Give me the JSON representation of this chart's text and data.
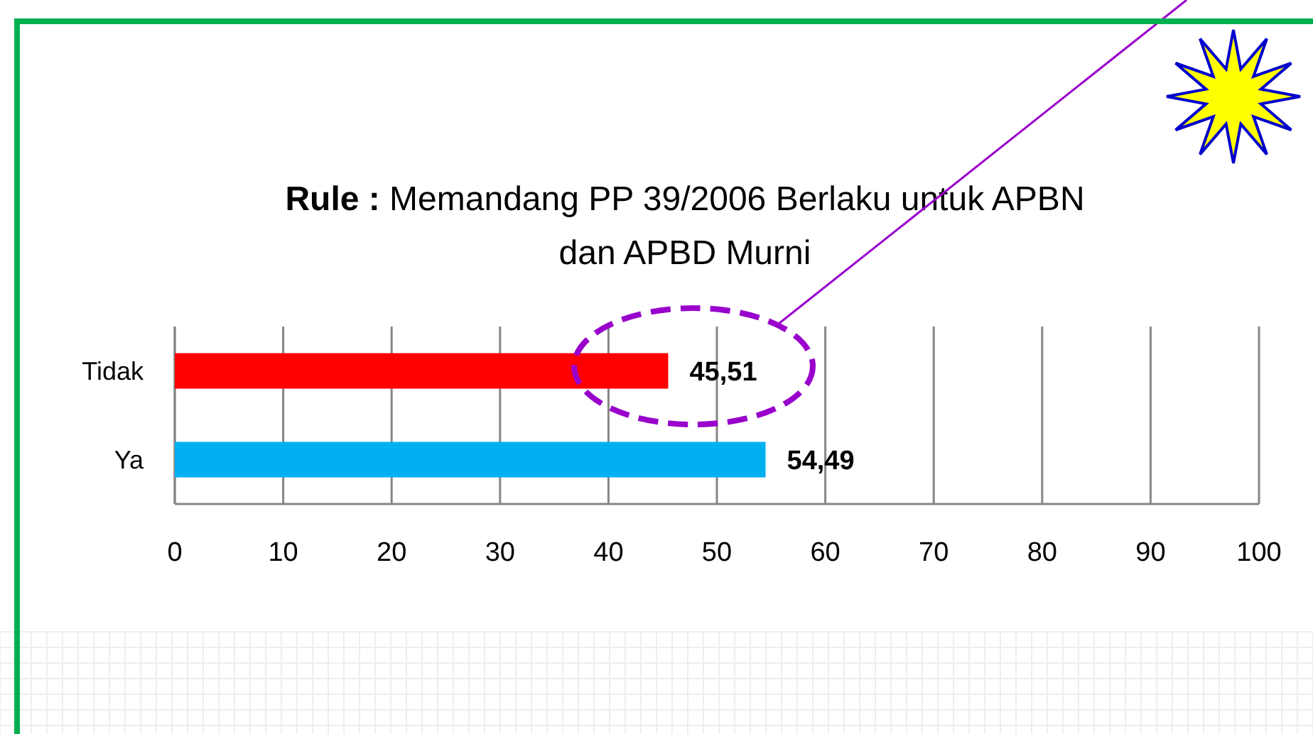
{
  "chart_data": {
    "type": "bar",
    "orientation": "horizontal",
    "title": "Rule : Memandang PP 39/2006 Berlaku untuk APBN dan APBD Murni",
    "categories": [
      "Tidak",
      "Ya"
    ],
    "values": [
      45.51,
      54.49
    ],
    "colors": [
      "#ff0000",
      "#00b0f0"
    ],
    "value_labels": [
      "45,51",
      "54,49"
    ],
    "xlim": [
      0,
      100
    ],
    "xticks": [
      0,
      10,
      20,
      30,
      40,
      50,
      60,
      70,
      80,
      90,
      100
    ],
    "grid": "x"
  }
}
